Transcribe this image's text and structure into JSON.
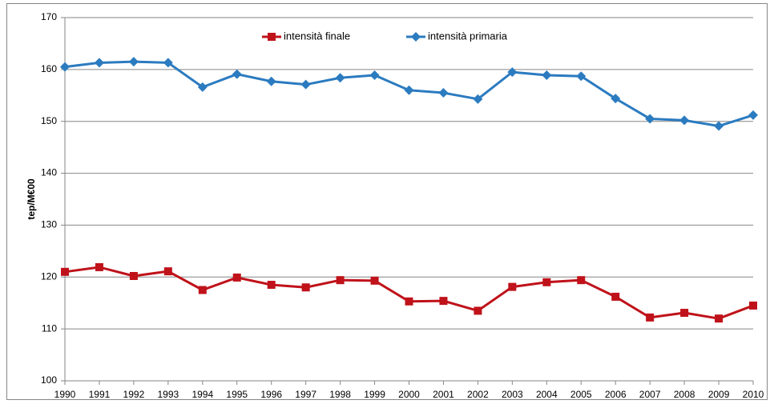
{
  "chart_data": {
    "type": "line",
    "y_label": "tep/M€00",
    "categories": [
      "1990",
      "1991",
      "1992",
      "1993",
      "1994",
      "1995",
      "1996",
      "1997",
      "1998",
      "1999",
      "2000",
      "2001",
      "2002",
      "2003",
      "2004",
      "2005",
      "2006",
      "2007",
      "2008",
      "2009",
      "2010"
    ],
    "series": [
      {
        "name": "intensità finale",
        "color": "#c0121a",
        "marker": "square",
        "values": [
          121.0,
          121.9,
          120.2,
          121.1,
          117.5,
          119.9,
          118.5,
          118.0,
          119.4,
          119.3,
          115.3,
          115.4,
          113.5,
          118.1,
          119.0,
          119.4,
          116.2,
          112.2,
          113.1,
          112.0,
          114.5
        ]
      },
      {
        "name": "intensità primaria",
        "color": "#2b7bc0",
        "marker": "diamond",
        "values": [
          160.5,
          161.3,
          161.5,
          161.3,
          156.6,
          159.1,
          157.7,
          157.1,
          158.4,
          158.9,
          156.0,
          155.5,
          154.3,
          159.5,
          158.9,
          158.7,
          154.4,
          150.5,
          150.2,
          149.1,
          151.2
        ]
      }
    ],
    "ylim": [
      100,
      170
    ],
    "yticks": [
      100,
      110,
      120,
      130,
      140,
      150,
      160,
      170
    ],
    "grid": true,
    "legend": "top"
  }
}
